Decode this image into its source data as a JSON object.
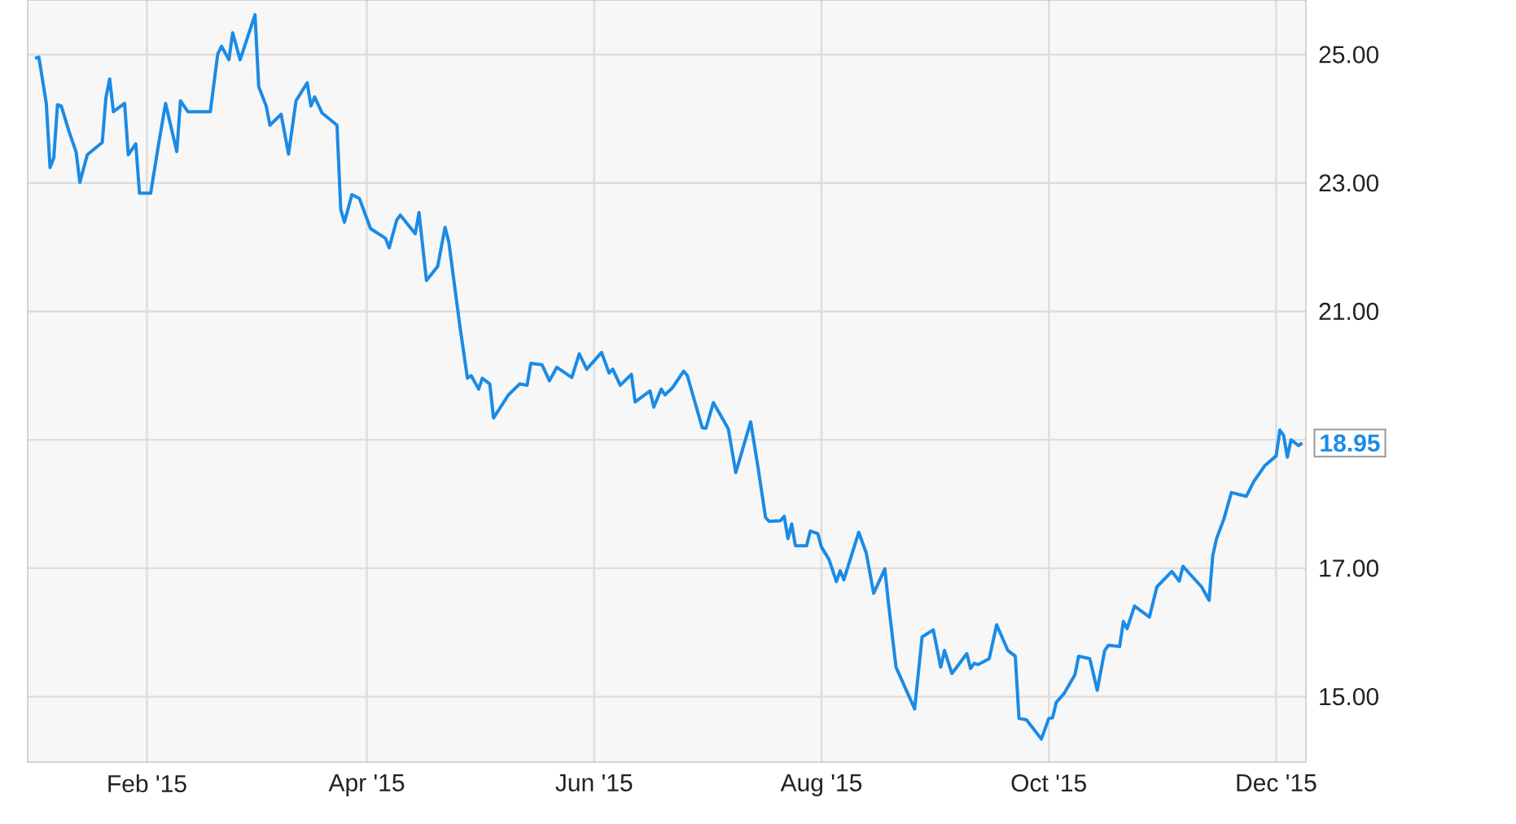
{
  "chart_data": {
    "type": "line",
    "x": [
      "2015-01-02",
      "2015-01-03",
      "2015-01-05",
      "2015-01-06",
      "2015-01-07",
      "2015-01-08",
      "2015-01-09",
      "2015-01-11",
      "2015-01-13",
      "2015-01-14",
      "2015-01-16",
      "2015-01-20",
      "2015-01-21",
      "2015-01-22",
      "2015-01-23",
      "2015-01-26",
      "2015-01-27",
      "2015-01-29",
      "2015-01-30",
      "2015-02-02",
      "2015-02-04",
      "2015-02-06",
      "2015-02-09",
      "2015-02-10",
      "2015-02-12",
      "2015-02-18",
      "2015-02-20",
      "2015-02-21",
      "2015-02-23",
      "2015-02-24",
      "2015-02-26",
      "2015-03-02",
      "2015-03-03",
      "2015-03-05",
      "2015-03-06",
      "2015-03-09",
      "2015-03-11",
      "2015-03-13",
      "2015-03-16",
      "2015-03-17",
      "2015-03-18",
      "2015-03-20",
      "2015-03-24",
      "2015-03-25",
      "2015-03-26",
      "2015-03-28",
      "2015-03-30",
      "2015-04-02",
      "2015-04-06",
      "2015-04-07",
      "2015-04-09",
      "2015-04-10",
      "2015-04-14",
      "2015-04-15",
      "2015-04-17",
      "2015-04-20",
      "2015-04-22",
      "2015-04-23",
      "2015-04-26",
      "2015-04-28",
      "2015-04-29",
      "2015-05-01",
      "2015-05-02",
      "2015-05-04",
      "2015-05-05",
      "2015-05-09",
      "2015-05-12",
      "2015-05-14",
      "2015-05-15",
      "2015-05-18",
      "2015-05-20",
      "2015-05-22",
      "2015-05-26",
      "2015-05-28",
      "2015-05-30",
      "2015-06-03",
      "2015-06-05",
      "2015-06-06",
      "2015-06-08",
      "2015-06-11",
      "2015-06-12",
      "2015-06-16",
      "2015-06-17",
      "2015-06-19",
      "2015-06-20",
      "2015-06-22",
      "2015-06-25",
      "2015-06-26",
      "2015-06-30",
      "2015-07-01",
      "2015-07-03",
      "2015-07-07",
      "2015-07-09",
      "2015-07-13",
      "2015-07-15",
      "2015-07-17",
      "2015-07-18",
      "2015-07-21",
      "2015-07-22",
      "2015-07-23",
      "2015-07-24",
      "2015-07-25",
      "2015-07-28",
      "2015-07-29",
      "2015-07-31",
      "2015-08-01",
      "2015-08-03",
      "2015-08-05",
      "2015-08-06",
      "2015-08-07",
      "2015-08-11",
      "2015-08-13",
      "2015-08-15",
      "2015-08-18",
      "2015-08-19",
      "2015-08-21",
      "2015-08-26",
      "2015-08-28",
      "2015-08-31",
      "2015-09-02",
      "2015-09-03",
      "2015-09-05",
      "2015-09-09",
      "2015-09-10",
      "2015-09-11",
      "2015-09-12",
      "2015-09-15",
      "2015-09-17",
      "2015-09-20",
      "2015-09-22",
      "2015-09-23",
      "2015-09-25",
      "2015-09-29",
      "2015-10-01",
      "2015-10-02",
      "2015-10-03",
      "2015-10-05",
      "2015-10-08",
      "2015-10-09",
      "2015-10-12",
      "2015-10-14",
      "2015-10-16",
      "2015-10-17",
      "2015-10-20",
      "2015-10-21",
      "2015-10-22",
      "2015-10-24",
      "2015-10-28",
      "2015-10-30",
      "2015-11-03",
      "2015-11-05",
      "2015-11-06",
      "2015-11-11",
      "2015-11-13",
      "2015-11-14",
      "2015-11-15",
      "2015-11-17",
      "2015-11-19",
      "2015-11-23",
      "2015-11-25",
      "2015-11-28",
      "2015-12-01",
      "2015-12-02",
      "2015-12-03",
      "2015-12-04",
      "2015-12-05",
      "2015-12-07",
      "2015-12-08"
    ],
    "series": [
      {
        "color": "#1a8be6",
        "values": [
          24.94,
          24.96,
          24.24,
          23.24,
          23.39,
          24.22,
          24.2,
          23.82,
          23.48,
          23.01,
          23.44,
          23.63,
          24.33,
          24.62,
          24.11,
          24.24,
          23.44,
          23.61,
          22.84,
          22.84,
          23.56,
          24.24,
          23.49,
          24.28,
          24.11,
          24.11,
          25.01,
          25.13,
          24.92,
          25.34,
          24.92,
          25.62,
          24.5,
          24.2,
          23.9,
          24.07,
          23.45,
          24.28,
          24.56,
          24.2,
          24.34,
          24.09,
          23.9,
          22.59,
          22.39,
          22.82,
          22.76,
          22.29,
          22.14,
          21.99,
          22.42,
          22.5,
          22.21,
          22.54,
          21.48,
          21.7,
          22.31,
          22.08,
          20.76,
          19.96,
          20.0,
          19.79,
          19.96,
          19.87,
          19.34,
          19.7,
          19.87,
          19.85,
          20.19,
          20.17,
          19.92,
          20.13,
          19.97,
          20.34,
          20.1,
          20.36,
          20.04,
          20.1,
          19.85,
          20.02,
          19.59,
          19.76,
          19.51,
          19.79,
          19.7,
          19.81,
          20.07,
          20.0,
          19.19,
          19.18,
          19.58,
          19.17,
          18.49,
          19.28,
          18.56,
          17.79,
          17.73,
          17.74,
          17.81,
          17.46,
          17.69,
          17.35,
          17.35,
          17.58,
          17.54,
          17.33,
          17.14,
          16.79,
          16.96,
          16.82,
          17.56,
          17.24,
          16.61,
          16.99,
          16.44,
          15.46,
          14.81,
          15.93,
          16.04,
          15.46,
          15.72,
          15.36,
          15.67,
          15.44,
          15.52,
          15.5,
          15.59,
          16.12,
          15.72,
          15.63,
          14.66,
          14.64,
          14.34,
          14.66,
          14.67,
          14.91,
          15.04,
          15.34,
          15.63,
          15.59,
          15.1,
          15.72,
          15.8,
          15.78,
          16.17,
          16.06,
          16.41,
          16.24,
          16.71,
          16.95,
          16.8,
          17.03,
          16.71,
          16.5,
          17.2,
          17.46,
          17.77,
          18.18,
          18.12,
          18.35,
          18.6,
          18.75,
          19.15,
          19.07,
          18.73,
          19.0,
          18.91,
          18.95
        ],
        "value_labels": [
          null,
          null,
          null,
          null,
          null,
          null,
          null,
          null,
          null,
          null,
          null,
          null,
          null,
          null,
          null,
          null,
          null,
          null,
          null,
          null,
          null,
          null,
          null,
          null,
          null,
          null,
          null,
          null,
          null,
          null,
          null,
          null,
          null,
          null,
          null,
          null,
          null,
          null,
          null,
          null,
          null,
          null,
          null,
          null,
          null,
          null,
          null,
          null,
          null,
          null,
          null,
          null,
          null,
          null,
          null,
          null,
          null,
          null,
          null,
          null,
          null,
          null,
          null,
          null,
          null,
          null,
          null,
          null,
          null,
          null,
          null,
          null,
          null,
          null,
          null,
          null,
          null,
          null,
          null,
          null,
          null,
          null,
          null,
          null,
          null,
          null,
          null,
          null,
          null,
          null,
          null,
          null,
          null,
          null,
          null,
          null,
          null,
          null,
          null,
          null,
          null,
          null,
          null,
          null,
          null,
          null,
          null,
          null,
          null,
          null,
          null,
          null,
          null,
          null,
          null,
          null,
          null,
          null,
          null,
          null,
          null,
          null,
          null,
          null,
          null,
          null,
          null,
          null,
          null,
          null,
          null,
          null,
          null,
          null,
          null,
          null,
          null,
          null,
          null,
          null,
          null,
          null,
          null,
          null,
          null,
          null,
          null,
          null,
          null,
          null,
          null,
          null,
          null,
          null,
          null,
          null,
          null,
          null,
          null,
          null,
          null,
          null,
          null,
          null,
          null,
          null,
          null,
          "18.95"
        ]
      }
    ],
    "xlim": [
      "2014-12-31",
      "2015-12-09"
    ],
    "xticks": [
      {
        "value": "2015-02-01",
        "label": "Feb '15"
      },
      {
        "value": "2015-04-01",
        "label": "Apr '15"
      },
      {
        "value": "2015-06-01",
        "label": "Jun '15"
      },
      {
        "value": "2015-08-01",
        "label": "Aug '15"
      },
      {
        "value": "2015-10-01",
        "label": "Oct '15"
      },
      {
        "value": "2015-12-01",
        "label": "Dec '15"
      }
    ],
    "ylim": [
      13.98,
      25.85
    ],
    "yticks": [
      {
        "value": 15,
        "label": "15.00"
      },
      {
        "value": 17,
        "label": "17.00"
      },
      {
        "value": 19,
        "label": null
      },
      {
        "value": 21,
        "label": "21.00"
      },
      {
        "value": 23,
        "label": "23.00"
      },
      {
        "value": 25,
        "label": "25.00"
      }
    ],
    "grid": true,
    "marker": "none",
    "line_style": "solid"
  }
}
